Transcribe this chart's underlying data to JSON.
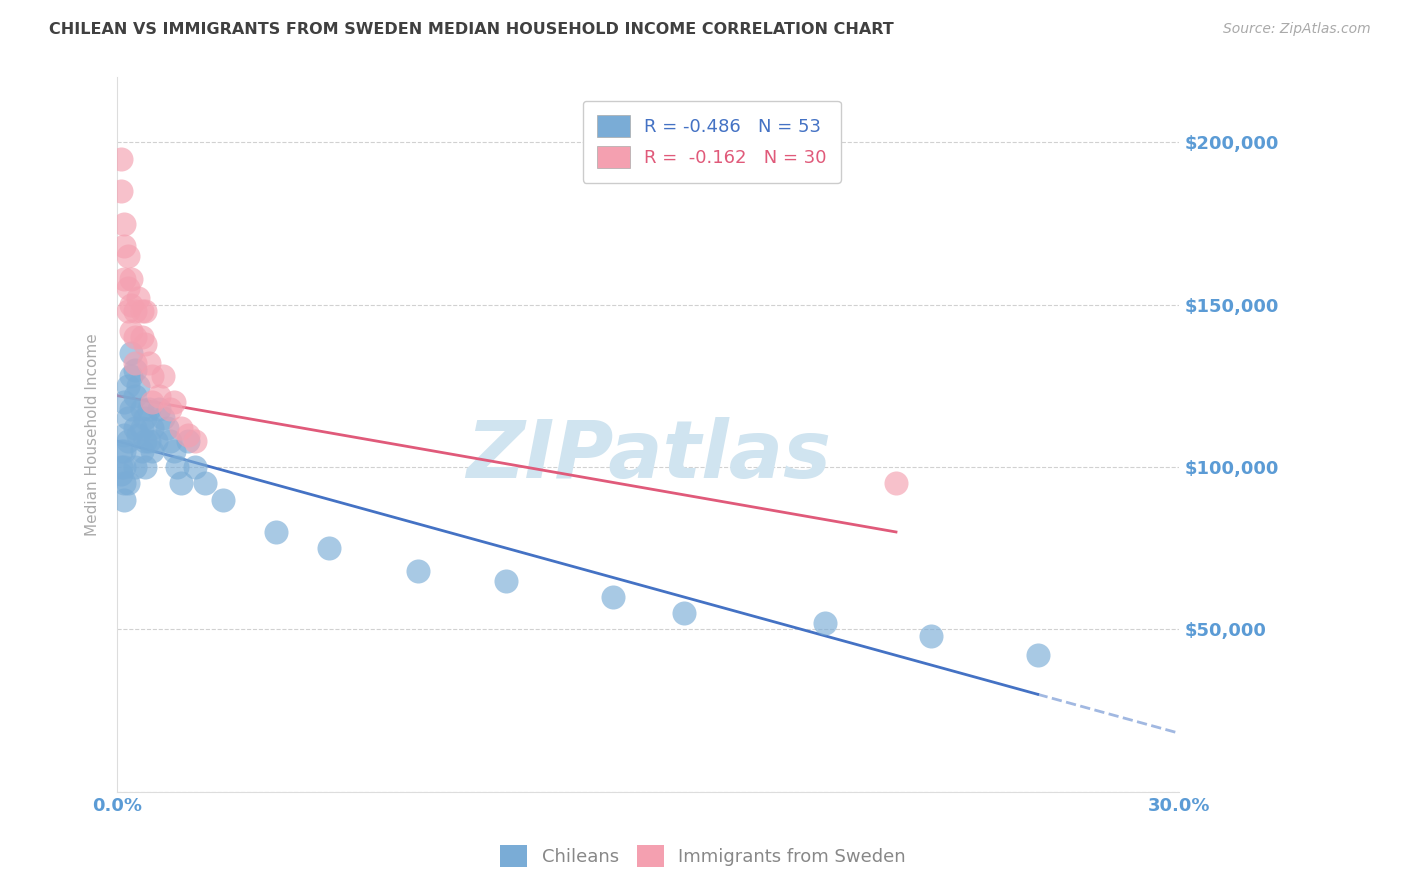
{
  "title": "CHILEAN VS IMMIGRANTS FROM SWEDEN MEDIAN HOUSEHOLD INCOME CORRELATION CHART",
  "source_text": "Source: ZipAtlas.com",
  "ylabel": "Median Household Income",
  "xlim": [
    0.0,
    0.3
  ],
  "ylim": [
    0,
    220000
  ],
  "yticks": [
    0,
    50000,
    100000,
    150000,
    200000
  ],
  "ytick_labels": [
    "",
    "$50,000",
    "$100,000",
    "$150,000",
    "$200,000"
  ],
  "xticks": [
    0.0,
    0.05,
    0.1,
    0.15,
    0.2,
    0.25,
    0.3
  ],
  "xtick_labels": [
    "0.0%",
    "",
    "",
    "",
    "",
    "",
    "30.0%"
  ],
  "chilean_x": [
    0.001,
    0.001,
    0.001,
    0.002,
    0.002,
    0.002,
    0.002,
    0.002,
    0.002,
    0.003,
    0.003,
    0.003,
    0.003,
    0.004,
    0.004,
    0.004,
    0.005,
    0.005,
    0.005,
    0.005,
    0.006,
    0.006,
    0.007,
    0.007,
    0.007,
    0.008,
    0.008,
    0.008,
    0.009,
    0.009,
    0.01,
    0.01,
    0.011,
    0.012,
    0.013,
    0.014,
    0.015,
    0.016,
    0.017,
    0.018,
    0.02,
    0.022,
    0.025,
    0.03,
    0.045,
    0.06,
    0.085,
    0.11,
    0.14,
    0.16,
    0.2,
    0.23,
    0.26
  ],
  "chilean_y": [
    105000,
    100000,
    98000,
    120000,
    110000,
    105000,
    100000,
    95000,
    90000,
    125000,
    115000,
    108000,
    95000,
    135000,
    128000,
    118000,
    130000,
    122000,
    112000,
    100000,
    125000,
    110000,
    118000,
    112000,
    105000,
    115000,
    108000,
    100000,
    118000,
    108000,
    112000,
    105000,
    108000,
    118000,
    115000,
    112000,
    108000,
    105000,
    100000,
    95000,
    108000,
    100000,
    95000,
    90000,
    80000,
    75000,
    68000,
    65000,
    60000,
    55000,
    52000,
    48000,
    42000
  ],
  "sweden_x": [
    0.001,
    0.001,
    0.002,
    0.002,
    0.002,
    0.003,
    0.003,
    0.003,
    0.004,
    0.004,
    0.004,
    0.005,
    0.005,
    0.005,
    0.006,
    0.007,
    0.007,
    0.008,
    0.008,
    0.009,
    0.01,
    0.01,
    0.012,
    0.013,
    0.015,
    0.016,
    0.018,
    0.02,
    0.022,
    0.22
  ],
  "sweden_y": [
    195000,
    185000,
    175000,
    168000,
    158000,
    165000,
    155000,
    148000,
    158000,
    150000,
    142000,
    148000,
    140000,
    132000,
    152000,
    148000,
    140000,
    148000,
    138000,
    132000,
    128000,
    120000,
    122000,
    128000,
    118000,
    120000,
    112000,
    110000,
    108000,
    95000
  ],
  "blue_line_x0": 0.0,
  "blue_line_y0": 108000,
  "blue_line_x1": 0.26,
  "blue_line_y1": 30000,
  "blue_line_solid_end": 0.26,
  "blue_line_dash_end": 0.3,
  "pink_line_x0": 0.0,
  "pink_line_y0": 122000,
  "pink_line_x1": 0.22,
  "pink_line_y1": 80000,
  "blue_line_color": "#4472c4",
  "pink_line_color": "#e05a7a",
  "blue_dot_color": "#7aacd6",
  "pink_dot_color": "#f4a0b0",
  "watermark_text": "ZIPatlas",
  "watermark_color": "#d0e4f0",
  "axis_label_color": "#5b9bd5",
  "title_color": "#404040",
  "grid_color": "#cccccc",
  "background_color": "#ffffff"
}
